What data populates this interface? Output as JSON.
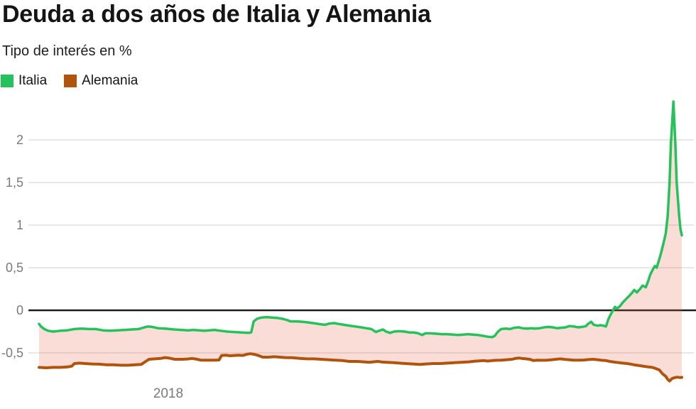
{
  "header": {
    "title": "Deuda a dos años de Italia y Alemania",
    "subtitle": "Tipo de interés en %"
  },
  "legend": [
    {
      "label": "Italia",
      "color": "#25c25b"
    },
    {
      "label": "Alemania",
      "color": "#b0540d"
    }
  ],
  "colors": {
    "italia_line": "#25c25b",
    "alemania_line": "#b0540d",
    "spread_fill": "rgba(232,98,74,0.22)",
    "gridline": "#e8e8e8",
    "zero_line": "#1a1a1a",
    "tick_text": "#7a7a7a",
    "background": "#ffffff"
  },
  "chart_data": {
    "type": "line",
    "title": "Deuda a dos años de Italia y Alemania",
    "subtitle": "Tipo de interés en %",
    "ylabel": "Tipo de interés en %",
    "xlabel": "",
    "ylim": [
      -0.92,
      2.58
    ],
    "grid": true,
    "legend_position": "top-left",
    "fill_between_series": true,
    "y_ticks": [
      {
        "value": 2,
        "label": "2"
      },
      {
        "value": 1.5,
        "label": "1,5"
      },
      {
        "value": 1,
        "label": "1"
      },
      {
        "value": 0.5,
        "label": "0,5"
      },
      {
        "value": 0,
        "label": "0"
      },
      {
        "value": -0.5,
        "label": "-0,5"
      }
    ],
    "x_ticks": [
      {
        "pos": 20.1,
        "label": "2018"
      }
    ],
    "series": [
      {
        "name": "Italia",
        "color": "#25c25b",
        "points": [
          [
            0,
            -0.16
          ],
          [
            0.3,
            -0.19
          ],
          [
            0.8,
            -0.22
          ],
          [
            1.4,
            -0.24
          ],
          [
            2.2,
            -0.25
          ],
          [
            3.3,
            -0.24
          ],
          [
            4.4,
            -0.235
          ],
          [
            5.5,
            -0.22
          ],
          [
            6.6,
            -0.215
          ],
          [
            7.7,
            -0.22
          ],
          [
            8.8,
            -0.22
          ],
          [
            9.9,
            -0.235
          ],
          [
            11,
            -0.24
          ],
          [
            12.2,
            -0.235
          ],
          [
            13.3,
            -0.23
          ],
          [
            14.4,
            -0.225
          ],
          [
            15.5,
            -0.22
          ],
          [
            16.4,
            -0.2
          ],
          [
            16.9,
            -0.19
          ],
          [
            17.6,
            -0.195
          ],
          [
            18.5,
            -0.21
          ],
          [
            19.6,
            -0.215
          ],
          [
            21,
            -0.225
          ],
          [
            22.1,
            -0.23
          ],
          [
            23.2,
            -0.235
          ],
          [
            24,
            -0.23
          ],
          [
            24.9,
            -0.235
          ],
          [
            25.7,
            -0.24
          ],
          [
            26.5,
            -0.235
          ],
          [
            27.3,
            -0.23
          ],
          [
            28.2,
            -0.24
          ],
          [
            29.3,
            -0.25
          ],
          [
            30.4,
            -0.255
          ],
          [
            31.5,
            -0.26
          ],
          [
            32.6,
            -0.265
          ],
          [
            33,
            -0.26
          ],
          [
            33.4,
            -0.13
          ],
          [
            33.9,
            -0.1
          ],
          [
            34.6,
            -0.085
          ],
          [
            35.4,
            -0.08
          ],
          [
            36.2,
            -0.085
          ],
          [
            37.1,
            -0.09
          ],
          [
            37.9,
            -0.1
          ],
          [
            38.6,
            -0.115
          ],
          [
            39.1,
            -0.13
          ],
          [
            40.1,
            -0.13
          ],
          [
            41.1,
            -0.135
          ],
          [
            42.1,
            -0.145
          ],
          [
            43.1,
            -0.155
          ],
          [
            43.9,
            -0.165
          ],
          [
            44.5,
            -0.17
          ],
          [
            45.2,
            -0.155
          ],
          [
            45.9,
            -0.15
          ],
          [
            46.6,
            -0.16
          ],
          [
            47.4,
            -0.17
          ],
          [
            48.3,
            -0.18
          ],
          [
            49.2,
            -0.19
          ],
          [
            50.1,
            -0.2
          ],
          [
            50.9,
            -0.21
          ],
          [
            51.7,
            -0.22
          ],
          [
            52.4,
            -0.255
          ],
          [
            52.9,
            -0.24
          ],
          [
            53.5,
            -0.225
          ],
          [
            54,
            -0.25
          ],
          [
            54.6,
            -0.265
          ],
          [
            55.2,
            -0.25
          ],
          [
            56,
            -0.245
          ],
          [
            56.9,
            -0.25
          ],
          [
            57.6,
            -0.26
          ],
          [
            58.3,
            -0.26
          ],
          [
            59,
            -0.27
          ],
          [
            59.6,
            -0.29
          ],
          [
            60.1,
            -0.27
          ],
          [
            60.9,
            -0.27
          ],
          [
            61.8,
            -0.275
          ],
          [
            62.7,
            -0.28
          ],
          [
            63.5,
            -0.28
          ],
          [
            64.4,
            -0.285
          ],
          [
            65.2,
            -0.29
          ],
          [
            66,
            -0.285
          ],
          [
            66.7,
            -0.28
          ],
          [
            67.5,
            -0.285
          ],
          [
            68.3,
            -0.29
          ],
          [
            69.1,
            -0.3
          ],
          [
            69.8,
            -0.31
          ],
          [
            70.5,
            -0.315
          ],
          [
            70.9,
            -0.3
          ],
          [
            71.4,
            -0.25
          ],
          [
            71.9,
            -0.22
          ],
          [
            72.6,
            -0.215
          ],
          [
            73.3,
            -0.22
          ],
          [
            73.9,
            -0.205
          ],
          [
            74.6,
            -0.2
          ],
          [
            75.2,
            -0.21
          ],
          [
            75.9,
            -0.215
          ],
          [
            76.6,
            -0.21
          ],
          [
            77.2,
            -0.215
          ],
          [
            77.9,
            -0.21
          ],
          [
            78.6,
            -0.2
          ],
          [
            79.2,
            -0.195
          ],
          [
            79.9,
            -0.2
          ],
          [
            80.6,
            -0.21
          ],
          [
            81.2,
            -0.205
          ],
          [
            81.9,
            -0.2
          ],
          [
            82.5,
            -0.185
          ],
          [
            83.2,
            -0.19
          ],
          [
            83.9,
            -0.2
          ],
          [
            84.5,
            -0.195
          ],
          [
            85.1,
            -0.185
          ],
          [
            85.4,
            -0.16
          ],
          [
            85.9,
            -0.135
          ],
          [
            86.3,
            -0.17
          ],
          [
            86.9,
            -0.18
          ],
          [
            87.4,
            -0.175
          ],
          [
            87.8,
            -0.18
          ],
          [
            88.2,
            -0.19
          ],
          [
            88.6,
            -0.1
          ],
          [
            89,
            -0.04
          ],
          [
            89.3,
            0
          ],
          [
            89.6,
            0.04
          ],
          [
            89.9,
            0.02
          ],
          [
            90.4,
            0.05
          ],
          [
            90.8,
            0.09
          ],
          [
            91.3,
            0.13
          ],
          [
            91.7,
            0.16
          ],
          [
            92.2,
            0.2
          ],
          [
            92.6,
            0.24
          ],
          [
            93,
            0.21
          ],
          [
            93.5,
            0.25
          ],
          [
            93.9,
            0.29
          ],
          [
            94.4,
            0.27
          ],
          [
            94.8,
            0.35
          ],
          [
            95.1,
            0.42
          ],
          [
            95.5,
            0.48
          ],
          [
            95.8,
            0.52
          ],
          [
            96.1,
            0.5
          ],
          [
            96.5,
            0.6
          ],
          [
            96.8,
            0.68
          ],
          [
            97.1,
            0.77
          ],
          [
            97.5,
            0.9
          ],
          [
            97.8,
            1.1
          ],
          [
            98.1,
            1.5
          ],
          [
            98.3,
            1.95
          ],
          [
            98.7,
            2.45
          ],
          [
            99,
            1.95
          ],
          [
            99.2,
            1.5
          ],
          [
            99.6,
            1.1
          ],
          [
            99.8,
            0.95
          ],
          [
            100,
            0.88
          ]
        ]
      },
      {
        "name": "Alemania",
        "color": "#b0540d",
        "points": [
          [
            0,
            -0.67
          ],
          [
            1.1,
            -0.675
          ],
          [
            2.2,
            -0.67
          ],
          [
            3.3,
            -0.67
          ],
          [
            4.4,
            -0.665
          ],
          [
            5.1,
            -0.655
          ],
          [
            5.5,
            -0.625
          ],
          [
            6.3,
            -0.62
          ],
          [
            7.2,
            -0.625
          ],
          [
            8.3,
            -0.63
          ],
          [
            9.4,
            -0.632
          ],
          [
            10.5,
            -0.64
          ],
          [
            11.6,
            -0.64
          ],
          [
            12.7,
            -0.645
          ],
          [
            13.8,
            -0.645
          ],
          [
            14.9,
            -0.64
          ],
          [
            15.9,
            -0.635
          ],
          [
            16.6,
            -0.6
          ],
          [
            17.1,
            -0.575
          ],
          [
            18,
            -0.57
          ],
          [
            18.9,
            -0.565
          ],
          [
            19.6,
            -0.555
          ],
          [
            20.2,
            -0.56
          ],
          [
            21.1,
            -0.575
          ],
          [
            22.2,
            -0.575
          ],
          [
            23.1,
            -0.572
          ],
          [
            23.8,
            -0.565
          ],
          [
            24.4,
            -0.572
          ],
          [
            25.2,
            -0.585
          ],
          [
            26.2,
            -0.585
          ],
          [
            27.2,
            -0.585
          ],
          [
            28,
            -0.583
          ],
          [
            28.4,
            -0.53
          ],
          [
            29.1,
            -0.527
          ],
          [
            29.7,
            -0.533
          ],
          [
            30.4,
            -0.53
          ],
          [
            31,
            -0.527
          ],
          [
            31.7,
            -0.53
          ],
          [
            32.4,
            -0.515
          ],
          [
            32.9,
            -0.51
          ],
          [
            33.5,
            -0.517
          ],
          [
            34.1,
            -0.53
          ],
          [
            34.8,
            -0.55
          ],
          [
            35.7,
            -0.55
          ],
          [
            36.6,
            -0.545
          ],
          [
            37.5,
            -0.55
          ],
          [
            38.3,
            -0.555
          ],
          [
            39.4,
            -0.556
          ],
          [
            40.6,
            -0.565
          ],
          [
            41.7,
            -0.57
          ],
          [
            42.8,
            -0.57
          ],
          [
            43.9,
            -0.575
          ],
          [
            45,
            -0.58
          ],
          [
            46.1,
            -0.585
          ],
          [
            47.2,
            -0.59
          ],
          [
            48.3,
            -0.6
          ],
          [
            49.4,
            -0.6
          ],
          [
            50.5,
            -0.605
          ],
          [
            51.4,
            -0.61
          ],
          [
            52,
            -0.605
          ],
          [
            52.7,
            -0.6
          ],
          [
            53.4,
            -0.607
          ],
          [
            54.1,
            -0.61
          ],
          [
            55.2,
            -0.615
          ],
          [
            56.4,
            -0.622
          ],
          [
            57.5,
            -0.627
          ],
          [
            58.6,
            -0.632
          ],
          [
            59.3,
            -0.635
          ],
          [
            60.2,
            -0.63
          ],
          [
            61.3,
            -0.625
          ],
          [
            62.4,
            -0.625
          ],
          [
            63.5,
            -0.62
          ],
          [
            64.6,
            -0.615
          ],
          [
            65.7,
            -0.61
          ],
          [
            66.9,
            -0.605
          ],
          [
            67.7,
            -0.598
          ],
          [
            68.5,
            -0.594
          ],
          [
            69.2,
            -0.59
          ],
          [
            69.8,
            -0.596
          ],
          [
            70.5,
            -0.59
          ],
          [
            71.2,
            -0.586
          ],
          [
            71.9,
            -0.585
          ],
          [
            72.8,
            -0.58
          ],
          [
            73.6,
            -0.575
          ],
          [
            74.1,
            -0.565
          ],
          [
            74.7,
            -0.56
          ],
          [
            75.2,
            -0.566
          ],
          [
            75.8,
            -0.57
          ],
          [
            76.4,
            -0.576
          ],
          [
            76.9,
            -0.59
          ],
          [
            77.5,
            -0.585
          ],
          [
            78.2,
            -0.586
          ],
          [
            79,
            -0.585
          ],
          [
            79.8,
            -0.58
          ],
          [
            80.4,
            -0.575
          ],
          [
            81.1,
            -0.57
          ],
          [
            81.8,
            -0.576
          ],
          [
            82.4,
            -0.58
          ],
          [
            83.2,
            -0.585
          ],
          [
            84,
            -0.585
          ],
          [
            84.8,
            -0.583
          ],
          [
            85.5,
            -0.578
          ],
          [
            86.2,
            -0.575
          ],
          [
            86.9,
            -0.58
          ],
          [
            87.5,
            -0.586
          ],
          [
            88.2,
            -0.59
          ],
          [
            88.8,
            -0.6
          ],
          [
            89.5,
            -0.608
          ],
          [
            90.2,
            -0.614
          ],
          [
            90.8,
            -0.62
          ],
          [
            91.5,
            -0.625
          ],
          [
            92.2,
            -0.634
          ],
          [
            92.8,
            -0.643
          ],
          [
            93.5,
            -0.65
          ],
          [
            94.1,
            -0.657
          ],
          [
            94.8,
            -0.665
          ],
          [
            95.4,
            -0.67
          ],
          [
            95.9,
            -0.682
          ],
          [
            96.5,
            -0.7
          ],
          [
            97,
            -0.745
          ],
          [
            97.5,
            -0.775
          ],
          [
            97.8,
            -0.81
          ],
          [
            98.1,
            -0.83
          ],
          [
            98.5,
            -0.8
          ],
          [
            98.9,
            -0.79
          ],
          [
            99.3,
            -0.785
          ],
          [
            99.8,
            -0.79
          ],
          [
            100,
            -0.787
          ]
        ]
      }
    ]
  }
}
